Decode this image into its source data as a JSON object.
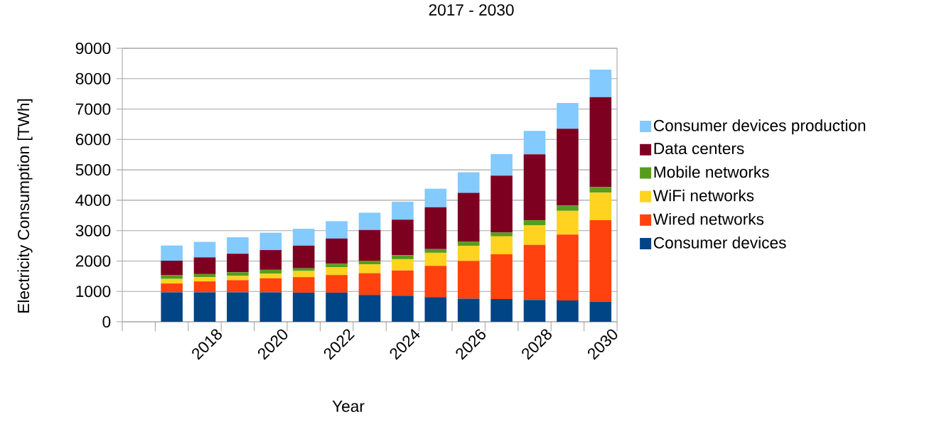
{
  "chart_data": {
    "type": "bar",
    "stacked": true,
    "title": "2017 - 2030",
    "xlabel": "Year",
    "ylabel": "Electricity Consumption [TWh]",
    "categories": [
      null,
      null,
      "2018",
      null,
      "2020",
      null,
      "2022",
      null,
      "2024",
      null,
      "2026",
      null,
      "2028",
      null,
      "2030"
    ],
    "series": [
      {
        "name": "Consumer devices",
        "color": "#004586",
        "values": [
          null,
          970,
          970,
          970,
          970,
          960,
          960,
          880,
          860,
          810,
          760,
          750,
          720,
          700,
          660
        ]
      },
      {
        "name": "Wired networks",
        "color": "#ff420e",
        "values": [
          null,
          290,
          360,
          400,
          460,
          510,
          580,
          720,
          830,
          1030,
          1240,
          1470,
          1810,
          2170,
          2680
        ]
      },
      {
        "name": "WiFi networks",
        "color": "#ffd320",
        "values": [
          null,
          150,
          140,
          140,
          150,
          200,
          260,
          290,
          370,
          430,
          500,
          590,
          650,
          780,
          910
        ]
      },
      {
        "name": "Mobile networks",
        "color": "#579d1c",
        "values": [
          null,
          120,
          100,
          120,
          130,
          90,
          110,
          120,
          130,
          120,
          140,
          130,
          160,
          170,
          180
        ]
      },
      {
        "name": "Data centers",
        "color": "#7e0021",
        "values": [
          null,
          480,
          550,
          610,
          650,
          750,
          830,
          1010,
          1170,
          1380,
          1600,
          1870,
          2170,
          2530,
          2960
        ]
      },
      {
        "name": "Consumer devices production",
        "color": "#83caff",
        "values": [
          null,
          500,
          510,
          540,
          570,
          550,
          570,
          570,
          590,
          610,
          680,
          710,
          770,
          850,
          910
        ]
      }
    ],
    "ylim": [
      0,
      9000
    ],
    "yticks": [
      0,
      1000,
      2000,
      3000,
      4000,
      5000,
      6000,
      7000,
      8000,
      9000
    ],
    "grid": "y",
    "legend": "right"
  }
}
